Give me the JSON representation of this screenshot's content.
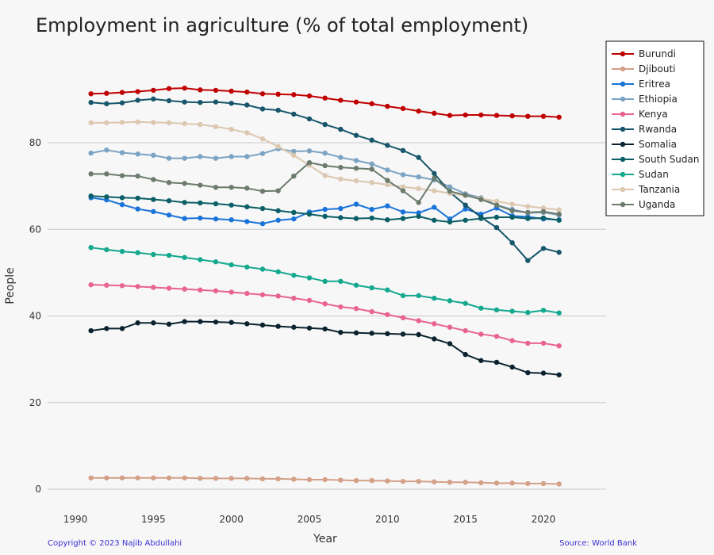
{
  "chart_data": {
    "type": "line",
    "title": "Employment in agriculture (% of total employment)",
    "xlabel": "Year",
    "ylabel": "People",
    "xlim": [
      1990,
      2021
    ],
    "ylim": [
      0,
      100
    ],
    "x_ticks": [
      "1990",
      "1995",
      "2000",
      "2005",
      "2010",
      "2015",
      "2020"
    ],
    "y_ticks": [
      "0",
      "20",
      "40",
      "60",
      "80"
    ],
    "grid": "horizontal",
    "legend_position": "top-right",
    "x": [
      1991,
      1992,
      1993,
      1994,
      1995,
      1996,
      1997,
      1998,
      1999,
      2000,
      2001,
      2002,
      2003,
      2004,
      2005,
      2006,
      2007,
      2008,
      2009,
      2010,
      2011,
      2012,
      2013,
      2014,
      2015,
      2016,
      2017,
      2018,
      2019,
      2020,
      2021
    ],
    "series": [
      {
        "name": "Burundi",
        "color": "#c00000",
        "values": [
          91.3,
          91.4,
          91.6,
          91.8,
          92.1,
          92.5,
          92.6,
          92.2,
          92.1,
          91.9,
          91.7,
          91.3,
          91.2,
          91.1,
          90.8,
          90.3,
          89.8,
          89.4,
          89.0,
          88.4,
          87.9,
          87.3,
          86.8,
          86.3,
          86.4,
          86.4,
          86.3,
          86.2,
          86.1,
          86.1,
          85.9
        ]
      },
      {
        "name": "Djibouti",
        "color": "#d4a088",
        "values": [
          2.6,
          2.6,
          2.6,
          2.6,
          2.6,
          2.6,
          2.6,
          2.5,
          2.5,
          2.5,
          2.5,
          2.4,
          2.4,
          2.3,
          2.2,
          2.2,
          2.1,
          2.0,
          2.0,
          1.9,
          1.8,
          1.8,
          1.7,
          1.6,
          1.6,
          1.5,
          1.4,
          1.4,
          1.3,
          1.3,
          1.2
        ]
      },
      {
        "name": "Eritrea",
        "color": "#1a73d9",
        "values": [
          67.3,
          66.8,
          65.7,
          64.7,
          64.1,
          63.3,
          62.5,
          62.6,
          62.4,
          62.2,
          61.8,
          61.3,
          62.1,
          62.4,
          64.0,
          64.6,
          64.8,
          65.8,
          64.6,
          65.4,
          64.0,
          63.8,
          65.1,
          62.4,
          64.7,
          63.5,
          64.9,
          63.1,
          62.9,
          62.4,
          62.2
        ]
      },
      {
        "name": "Ethiopia",
        "color": "#7ba3c4",
        "values": [
          77.6,
          78.3,
          77.7,
          77.4,
          77.1,
          76.4,
          76.4,
          76.8,
          76.4,
          76.8,
          76.8,
          77.5,
          78.6,
          78.0,
          78.1,
          77.6,
          76.6,
          75.9,
          75.1,
          73.7,
          72.6,
          72.1,
          71.4,
          69.8,
          68.2,
          67.3,
          65.6,
          64.6,
          63.8,
          63.9,
          63.3
        ]
      },
      {
        "name": "Kenya",
        "color": "#e8648e",
        "values": [
          47.2,
          47.1,
          47.0,
          46.8,
          46.6,
          46.4,
          46.2,
          46.0,
          45.8,
          45.5,
          45.2,
          44.9,
          44.6,
          44.1,
          43.6,
          42.8,
          42.1,
          41.7,
          41.0,
          40.3,
          39.6,
          38.9,
          38.2,
          37.4,
          36.6,
          35.8,
          35.3,
          34.3,
          33.7,
          33.7,
          33.1
        ]
      },
      {
        "name": "Rwanda",
        "color": "#17566b",
        "values": [
          89.3,
          89.0,
          89.2,
          89.8,
          90.1,
          89.7,
          89.4,
          89.3,
          89.4,
          89.1,
          88.7,
          87.8,
          87.5,
          86.6,
          85.5,
          84.2,
          83.1,
          81.7,
          80.6,
          79.4,
          78.2,
          76.6,
          72.9,
          68.6,
          65.6,
          62.8,
          60.4,
          56.9,
          52.8,
          55.6,
          54.7
        ]
      },
      {
        "name": "Somalia",
        "color": "#0b2330",
        "values": [
          36.6,
          37.1,
          37.1,
          38.4,
          38.4,
          38.1,
          38.7,
          38.7,
          38.6,
          38.5,
          38.2,
          37.9,
          37.6,
          37.4,
          37.2,
          37.0,
          36.2,
          36.1,
          36.0,
          35.9,
          35.8,
          35.7,
          34.7,
          33.6,
          31.1,
          29.7,
          29.3,
          28.2,
          26.9,
          26.8,
          26.4
        ]
      },
      {
        "name": "South Sudan",
        "color": "#0b5f66",
        "values": [
          67.7,
          67.5,
          67.3,
          67.2,
          66.9,
          66.6,
          66.2,
          66.1,
          65.9,
          65.6,
          65.2,
          64.8,
          64.3,
          63.9,
          63.5,
          63.0,
          62.7,
          62.5,
          62.6,
          62.2,
          62.5,
          63.0,
          62.1,
          61.7,
          62.1,
          62.5,
          62.8,
          62.8,
          62.5,
          62.6,
          62.1
        ]
      },
      {
        "name": "Sudan",
        "color": "#14a88f",
        "values": [
          55.8,
          55.3,
          54.9,
          54.6,
          54.2,
          54.0,
          53.5,
          53.0,
          52.5,
          51.8,
          51.3,
          50.8,
          50.2,
          49.4,
          48.8,
          48.0,
          48.0,
          47.1,
          46.5,
          46.0,
          44.7,
          44.7,
          44.1,
          43.5,
          42.9,
          41.8,
          41.4,
          41.1,
          40.8,
          41.3,
          40.7
        ]
      },
      {
        "name": "Tanzania",
        "color": "#dcc7b0",
        "values": [
          84.6,
          84.6,
          84.7,
          84.8,
          84.7,
          84.6,
          84.4,
          84.2,
          83.7,
          83.1,
          82.3,
          80.9,
          79.1,
          77.1,
          74.8,
          72.4,
          71.6,
          71.2,
          70.8,
          70.3,
          69.8,
          69.4,
          68.9,
          68.3,
          67.8,
          67.1,
          66.5,
          65.8,
          65.3,
          64.9,
          64.5
        ]
      },
      {
        "name": "Uganda",
        "color": "#6b7b6c",
        "values": [
          72.8,
          72.8,
          72.4,
          72.3,
          71.5,
          70.8,
          70.6,
          70.2,
          69.7,
          69.7,
          69.5,
          68.8,
          68.9,
          72.3,
          75.4,
          74.7,
          74.3,
          74.1,
          73.9,
          71.3,
          68.9,
          66.2,
          71.8,
          68.8,
          67.9,
          66.9,
          65.6,
          64.3,
          63.9,
          64.1,
          63.5
        ]
      }
    ]
  },
  "footer": {
    "copyright": "Copyright © 2023 Najib Abdullahi",
    "source": "Source: World Bank"
  }
}
